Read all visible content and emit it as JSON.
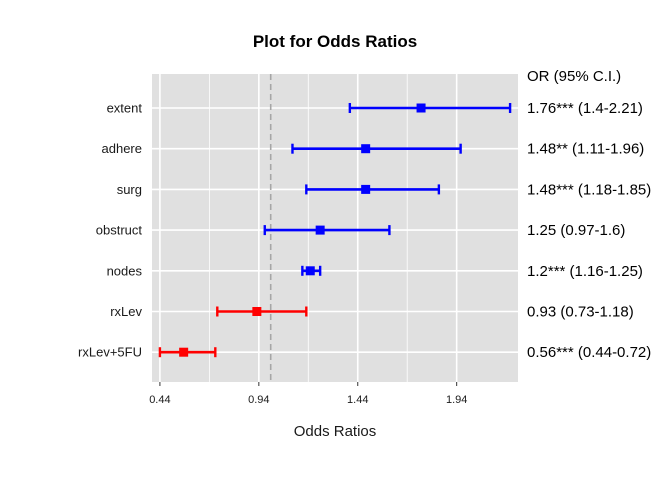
{
  "chart_data": {
    "type": "forest",
    "title": "Plot for Odds Ratios",
    "xlabel": "Odds Ratios",
    "annotation_header": "OR (95% C.I.)",
    "xlim": [
      0.4,
      2.25
    ],
    "xticks": [
      0.44,
      0.94,
      1.44,
      1.94
    ],
    "xtick_labels": [
      "0.44",
      "0.94",
      "1.44",
      "1.94"
    ],
    "reference_line": 1.0,
    "grid": true,
    "colors": {
      "positive": "#0000ff",
      "negative": "#ff0000",
      "panel": "#e0e0e0",
      "grid": "#ffffff",
      "refline": "#a6a6a6"
    },
    "rows": [
      {
        "label": "extent",
        "or": 1.76,
        "lower": 1.4,
        "upper": 2.21,
        "text": "1.76*** (1.4-2.21)",
        "color": "positive"
      },
      {
        "label": "adhere",
        "or": 1.48,
        "lower": 1.11,
        "upper": 1.96,
        "text": "1.48** (1.11-1.96)",
        "color": "positive"
      },
      {
        "label": "surg",
        "or": 1.48,
        "lower": 1.18,
        "upper": 1.85,
        "text": "1.48*** (1.18-1.85)",
        "color": "positive"
      },
      {
        "label": "obstruct",
        "or": 1.25,
        "lower": 0.97,
        "upper": 1.6,
        "text": "1.25 (0.97-1.6)",
        "color": "positive"
      },
      {
        "label": "nodes",
        "or": 1.2,
        "lower": 1.16,
        "upper": 1.25,
        "text": "1.2*** (1.16-1.25)",
        "color": "positive"
      },
      {
        "label": "rxLev",
        "or": 0.93,
        "lower": 0.73,
        "upper": 1.18,
        "text": "0.93 (0.73-1.18)",
        "color": "negative"
      },
      {
        "label": "rxLev+5FU",
        "or": 0.56,
        "lower": 0.44,
        "upper": 0.72,
        "text": "0.56*** (0.44-0.72)",
        "color": "negative"
      }
    ]
  }
}
